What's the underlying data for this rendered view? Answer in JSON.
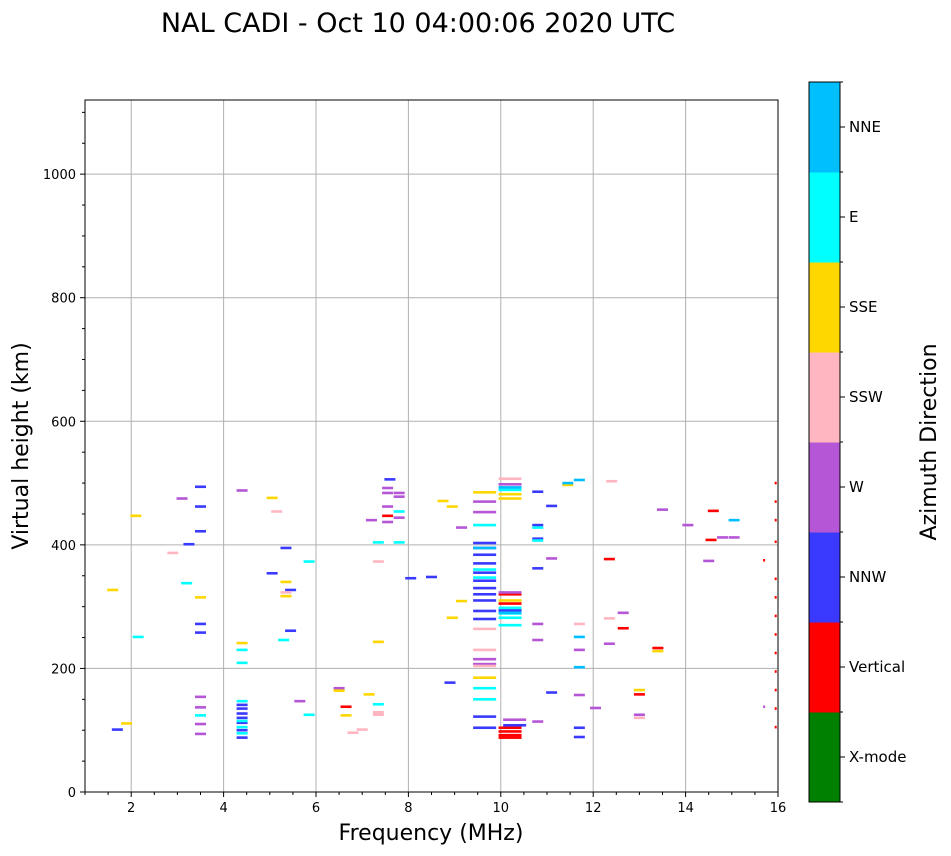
{
  "chart_data": {
    "type": "scatter",
    "title": "NAL CADI - Oct 10 04:00:06 2020 UTC",
    "xlabel": "Frequency (MHz)",
    "ylabel": "Virtual height (km)",
    "xlim": [
      1,
      16
    ],
    "ylim": [
      0,
      1120
    ],
    "xticks": [
      2,
      4,
      6,
      8,
      10,
      12,
      14,
      16
    ],
    "yticks": [
      0,
      200,
      400,
      600,
      800,
      1000
    ],
    "grid": true,
    "colorbar": {
      "title": "Azimuth Direction",
      "entries": [
        {
          "label": "X-mode",
          "color": "#008000"
        },
        {
          "label": "Vertical",
          "color": "#ff0000"
        },
        {
          "label": "NNW",
          "color": "#3a3aff"
        },
        {
          "label": "W",
          "color": "#b556d6"
        },
        {
          "label": "SSW",
          "color": "#ffb6c1"
        },
        {
          "label": "SSE",
          "color": "#ffd700"
        },
        {
          "label": "E",
          "color": "#00ffff"
        },
        {
          "label": "NNE",
          "color": "#00bfff"
        }
      ]
    },
    "series": [
      {
        "name": "Vertical",
        "color": "#ff0000",
        "points": [
          [
            6.65,
            138
          ],
          [
            7.55,
            447
          ],
          [
            10.2,
            104
          ],
          [
            10.2,
            98
          ],
          [
            10.2,
            92
          ],
          [
            10.2,
            88
          ],
          [
            10.2,
            305
          ],
          [
            10.2,
            320
          ],
          [
            12.35,
            377
          ],
          [
            12.65,
            265
          ],
          [
            13.0,
            158
          ],
          [
            13.4,
            233
          ],
          [
            14.55,
            408
          ],
          [
            14.6,
            455
          ],
          [
            15.7,
            375
          ],
          [
            15.95,
            105
          ],
          [
            15.95,
            135
          ],
          [
            15.95,
            165
          ],
          [
            15.95,
            195
          ],
          [
            15.95,
            225
          ],
          [
            15.95,
            255
          ],
          [
            15.95,
            285
          ],
          [
            15.95,
            315
          ],
          [
            15.95,
            345
          ],
          [
            15.95,
            405
          ],
          [
            15.95,
            440
          ],
          [
            15.95,
            470
          ],
          [
            15.95,
            500
          ]
        ]
      },
      {
        "name": "NNW",
        "color": "#3a3aff",
        "points": [
          [
            1.7,
            101
          ],
          [
            3.25,
            401
          ],
          [
            3.5,
            258
          ],
          [
            3.5,
            272
          ],
          [
            3.5,
            422
          ],
          [
            3.5,
            462
          ],
          [
            3.5,
            494
          ],
          [
            4.4,
            88
          ],
          [
            4.4,
            100
          ],
          [
            4.4,
            112
          ],
          [
            4.4,
            120
          ],
          [
            4.4,
            127
          ],
          [
            4.4,
            135
          ],
          [
            4.4,
            141
          ],
          [
            5.05,
            354
          ],
          [
            5.35,
            395
          ],
          [
            5.45,
            327
          ],
          [
            5.45,
            261
          ],
          [
            7.6,
            506
          ],
          [
            8.05,
            346
          ],
          [
            8.5,
            348
          ],
          [
            8.9,
            177
          ],
          [
            9.65,
            104
          ],
          [
            9.65,
            122
          ],
          [
            9.65,
            280
          ],
          [
            9.65,
            293
          ],
          [
            9.65,
            310
          ],
          [
            9.65,
            320
          ],
          [
            9.65,
            330
          ],
          [
            9.65,
            342
          ],
          [
            9.65,
            355
          ],
          [
            9.65,
            370
          ],
          [
            9.65,
            384
          ],
          [
            9.65,
            395
          ],
          [
            9.65,
            403
          ],
          [
            10.2,
            294
          ],
          [
            10.3,
            108
          ],
          [
            10.8,
            362
          ],
          [
            10.8,
            410
          ],
          [
            10.8,
            432
          ],
          [
            10.8,
            486
          ],
          [
            11.1,
            161
          ],
          [
            11.1,
            463
          ],
          [
            11.7,
            89
          ],
          [
            11.7,
            104
          ]
        ]
      },
      {
        "name": "W",
        "color": "#b556d6",
        "points": [
          [
            3.1,
            475
          ],
          [
            3.5,
            94
          ],
          [
            3.5,
            110
          ],
          [
            3.5,
            137
          ],
          [
            3.5,
            154
          ],
          [
            4.4,
            488
          ],
          [
            5.65,
            147
          ],
          [
            6.5,
            168
          ],
          [
            7.2,
            440
          ],
          [
            7.55,
            437
          ],
          [
            7.55,
            484
          ],
          [
            7.55,
            492
          ],
          [
            7.55,
            462
          ],
          [
            7.8,
            478
          ],
          [
            7.8,
            484
          ],
          [
            7.8,
            444
          ],
          [
            9.15,
            428
          ],
          [
            9.65,
            207
          ],
          [
            9.65,
            215
          ],
          [
            9.65,
            453
          ],
          [
            9.65,
            470
          ],
          [
            10.2,
            323
          ],
          [
            10.2,
            498
          ],
          [
            10.3,
            117
          ],
          [
            10.8,
            114
          ],
          [
            10.8,
            246
          ],
          [
            10.8,
            272
          ],
          [
            11.1,
            378
          ],
          [
            11.7,
            157
          ],
          [
            11.7,
            230
          ],
          [
            12.05,
            136
          ],
          [
            12.35,
            240
          ],
          [
            12.65,
            290
          ],
          [
            13.0,
            125
          ],
          [
            13.5,
            457
          ],
          [
            14.05,
            432
          ],
          [
            14.5,
            374
          ],
          [
            14.8,
            412
          ],
          [
            15.05,
            412
          ],
          [
            15.7,
            138
          ]
        ]
      },
      {
        "name": "SSW",
        "color": "#ffb6c1",
        "points": [
          [
            2.9,
            387
          ],
          [
            5.15,
            454
          ],
          [
            5.35,
            323
          ],
          [
            6.8,
            96
          ],
          [
            7.0,
            101
          ],
          [
            7.35,
            125
          ],
          [
            7.35,
            129
          ],
          [
            7.35,
            373
          ],
          [
            9.65,
            230
          ],
          [
            9.65,
            204
          ],
          [
            9.65,
            264
          ],
          [
            10.2,
            507
          ],
          [
            11.7,
            272
          ],
          [
            12.35,
            281
          ],
          [
            12.4,
            503
          ],
          [
            13.0,
            120
          ]
        ]
      },
      {
        "name": "SSE",
        "color": "#ffd700",
        "points": [
          [
            1.6,
            327
          ],
          [
            1.9,
            111
          ],
          [
            2.1,
            447
          ],
          [
            3.5,
            315
          ],
          [
            4.4,
            241
          ],
          [
            5.05,
            476
          ],
          [
            5.35,
            317
          ],
          [
            5.35,
            340
          ],
          [
            6.5,
            164
          ],
          [
            6.65,
            124
          ],
          [
            7.15,
            158
          ],
          [
            7.35,
            243
          ],
          [
            8.75,
            471
          ],
          [
            8.95,
            462
          ],
          [
            8.95,
            282
          ],
          [
            9.15,
            309
          ],
          [
            9.65,
            185
          ],
          [
            9.65,
            485
          ],
          [
            10.2,
            475
          ],
          [
            10.2,
            482
          ],
          [
            10.2,
            310
          ],
          [
            11.45,
            497
          ],
          [
            13.0,
            165
          ],
          [
            13.4,
            228
          ]
        ]
      },
      {
        "name": "E",
        "color": "#00ffff",
        "points": [
          [
            2.15,
            251
          ],
          [
            3.2,
            338
          ],
          [
            3.5,
            124
          ],
          [
            4.4,
            95
          ],
          [
            4.4,
            105
          ],
          [
            4.4,
            115
          ],
          [
            4.4,
            147
          ],
          [
            4.4,
            209
          ],
          [
            4.4,
            230
          ],
          [
            5.3,
            246
          ],
          [
            5.85,
            373
          ],
          [
            5.85,
            125
          ],
          [
            7.35,
            142
          ],
          [
            7.35,
            404
          ],
          [
            7.8,
            404
          ],
          [
            7.8,
            454
          ],
          [
            9.65,
            150
          ],
          [
            9.65,
            168
          ],
          [
            9.65,
            347
          ],
          [
            9.65,
            360
          ],
          [
            9.65,
            432
          ],
          [
            10.2,
            270
          ],
          [
            10.2,
            282
          ],
          [
            10.2,
            289
          ],
          [
            10.2,
            298
          ],
          [
            10.2,
            489
          ],
          [
            10.8,
            407
          ],
          [
            10.8,
            428
          ]
        ]
      },
      {
        "name": "NNE",
        "color": "#00bfff",
        "points": [
          [
            9.65,
            395
          ],
          [
            10.2,
            493
          ],
          [
            10.2,
            290
          ],
          [
            11.45,
            500
          ],
          [
            11.7,
            202
          ],
          [
            11.7,
            251
          ],
          [
            11.7,
            505
          ],
          [
            15.05,
            440
          ]
        ]
      }
    ]
  }
}
